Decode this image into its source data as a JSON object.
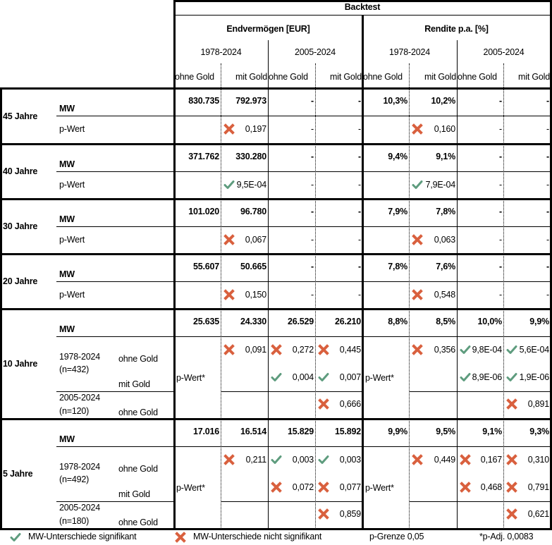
{
  "header": {
    "title": "Backtest",
    "groups": [
      {
        "label": "Endvermögen [EUR]",
        "periods": [
          "1978-2024",
          "2005-2024"
        ]
      },
      {
        "label": "Rendite p.a. [%]",
        "periods": [
          "1978-2024",
          "2005-2024"
        ]
      }
    ],
    "sub_labels": [
      "ohne Gold",
      "mit Gold",
      "ohne Gold",
      "mit Gold",
      "ohne Gold",
      "mit Gold",
      "ohne Gold",
      "mit Gold"
    ]
  },
  "labels": {
    "mw": "MW",
    "p_wert": "p-Wert",
    "p_wert_adj": "p-Wert*",
    "dash": "-"
  },
  "sections": [
    {
      "label": "45 Jahre",
      "mw": [
        "830.735",
        "792.973",
        "-",
        "-",
        "10,3%",
        "10,2%",
        "-",
        "-"
      ],
      "p": [
        {
          "value": "0,197",
          "sig": false
        },
        {
          "value": "0,160",
          "sig": false
        }
      ]
    },
    {
      "label": "40 Jahre",
      "mw": [
        "371.762",
        "330.280",
        "-",
        "-",
        "9,4%",
        "9,1%",
        "-",
        "-"
      ],
      "p": [
        {
          "value": "9,5E-04",
          "sig": true
        },
        {
          "value": "7,9E-04",
          "sig": true
        }
      ]
    },
    {
      "label": "30 Jahre",
      "mw": [
        "101.020",
        "96.780",
        "-",
        "-",
        "7,9%",
        "7,8%",
        "-",
        "-"
      ],
      "p": [
        {
          "value": "0,067",
          "sig": false
        },
        {
          "value": "0,063",
          "sig": false
        }
      ]
    },
    {
      "label": "20 Jahre",
      "mw": [
        "55.607",
        "50.665",
        "-",
        "-",
        "7,8%",
        "7,6%",
        "-",
        "-"
      ],
      "p": [
        {
          "value": "0,150",
          "sig": false
        },
        {
          "value": "0,548",
          "sig": false
        }
      ]
    },
    {
      "label": "10 Jahre",
      "mw": [
        "25.635",
        "24.330",
        "26.529",
        "26.210",
        "8,8%",
        "8,5%",
        "10,0%",
        "9,9%"
      ],
      "rows": [
        {
          "period": "1978-2024",
          "n": "(n=432)",
          "gold": "ohne Gold"
        },
        {
          "gold": "mit Gold"
        },
        {
          "period": "2005-2024",
          "n": "(n=120)",
          "gold": "ohne Gold"
        }
      ],
      "p_eur": {
        "r1": [
          {
            "value": "0,091",
            "sig": false
          },
          {
            "value": "0,272",
            "sig": false
          },
          {
            "value": "0,445",
            "sig": false
          }
        ],
        "r2": [
          {
            "value": "0,004",
            "sig": true
          },
          {
            "value": "0,007",
            "sig": true
          }
        ],
        "r3": [
          {
            "value": "0,666",
            "sig": false
          }
        ]
      },
      "p_ret": {
        "r1": [
          {
            "value": "0,356",
            "sig": false
          },
          {
            "value": "9,8E-04",
            "sig": true
          },
          {
            "value": "5,6E-04",
            "sig": true
          }
        ],
        "r2": [
          {
            "value": "8,9E-06",
            "sig": true
          },
          {
            "value": "1,9E-06",
            "sig": true
          }
        ],
        "r3": [
          {
            "value": "0,891",
            "sig": false
          }
        ]
      }
    },
    {
      "label": "5 Jahre",
      "mw": [
        "17.016",
        "16.514",
        "15.829",
        "15.892",
        "9,9%",
        "9,5%",
        "9,1%",
        "9,3%"
      ],
      "rows": [
        {
          "period": "1978-2024",
          "n": "(n=492)",
          "gold": "ohne Gold"
        },
        {
          "gold": "mit Gold"
        },
        {
          "period": "2005-2024",
          "n": "(n=180)",
          "gold": "ohne Gold"
        }
      ],
      "p_eur": {
        "r1": [
          {
            "value": "0,211",
            "sig": false
          },
          {
            "value": "0,003",
            "sig": true
          },
          {
            "value": "0,003",
            "sig": true
          }
        ],
        "r2": [
          {
            "value": "0,072",
            "sig": false
          },
          {
            "value": "0,077",
            "sig": false
          }
        ],
        "r3": [
          {
            "value": "0,859",
            "sig": false
          }
        ]
      },
      "p_ret": {
        "r1": [
          {
            "value": "0,449",
            "sig": false
          },
          {
            "value": "0,167",
            "sig": false
          },
          {
            "value": "0,310",
            "sig": false
          }
        ],
        "r2": [
          {
            "value": "0,468",
            "sig": false
          },
          {
            "value": "0,791",
            "sig": false
          }
        ],
        "r3": [
          {
            "value": "0,621",
            "sig": false
          }
        ]
      }
    }
  ],
  "legend": {
    "sig": "MW-Unterschiede signifikant",
    "nonsig": "MW-Unterschiede nicht signifikant",
    "p_limit": "p-Grenze 0,05",
    "p_adj": "*p-Adj. 0,0083"
  },
  "colors": {
    "check": "#5e9c7e",
    "cross": "#d9603e"
  }
}
